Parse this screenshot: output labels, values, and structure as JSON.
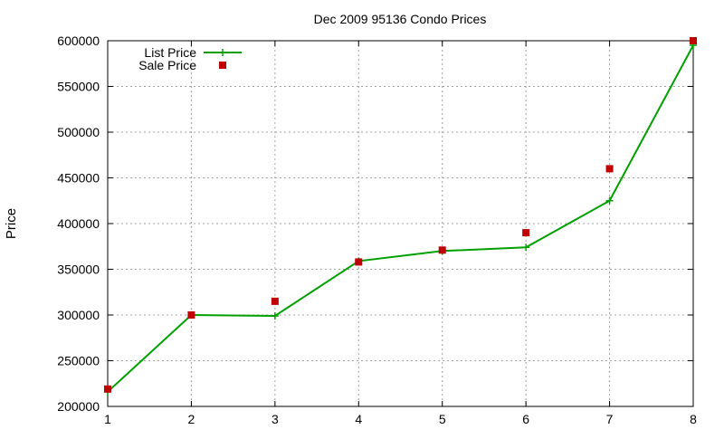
{
  "chart_data": {
    "type": "line",
    "title": "Dec 2009 95136 Condo Prices",
    "xlabel": "",
    "ylabel": "Price",
    "xlim": [
      1,
      8
    ],
    "ylim": [
      200000,
      600000
    ],
    "xticks": [
      1,
      2,
      3,
      4,
      5,
      6,
      7,
      8
    ],
    "yticks": [
      200000,
      250000,
      300000,
      350000,
      400000,
      450000,
      500000,
      550000,
      600000
    ],
    "grid": true,
    "legend_position": "top-left",
    "series": [
      {
        "name": "List Price",
        "style": "line-with-plus-markers",
        "color": "#00a000",
        "x": [
          1,
          2,
          3,
          4,
          5,
          6,
          7,
          8
        ],
        "y": [
          216000,
          300000,
          299000,
          359000,
          370000,
          374000,
          425000,
          595000
        ]
      },
      {
        "name": "Sale Price",
        "style": "square-markers",
        "color": "#c00000",
        "x": [
          1,
          2,
          3,
          4,
          5,
          6,
          7,
          8
        ],
        "y": [
          219000,
          300000,
          315000,
          358000,
          371000,
          390000,
          460000,
          600000
        ]
      }
    ]
  }
}
